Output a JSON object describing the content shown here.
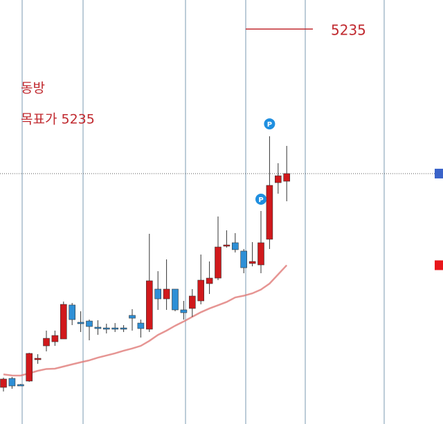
{
  "chart_data": {
    "type": "candlestick",
    "title": "동방",
    "subtitle": "목표가 5235",
    "target": 5235,
    "ylim": [
      1581,
      5504
    ],
    "up_color": "#d0191c",
    "down_color": "#2e8fd6",
    "ma_color": "#e07a78",
    "open": [
      1920,
      2003,
      1946,
      1978,
      2176,
      2304,
      2342,
      2368,
      2682,
      2522,
      2534,
      2477,
      2470,
      2470,
      2470,
      2586,
      2515,
      2458,
      2829,
      2739,
      2829,
      2637,
      2650,
      2720,
      2880,
      2931,
      3226,
      3258,
      3181,
      3066,
      3053,
      3290,
      3814,
      3827
    ],
    "high": [
      2010,
      2016,
      1952,
      2240,
      2227,
      2445,
      2445,
      2714,
      2701,
      2624,
      2547,
      2541,
      2509,
      2515,
      2496,
      2643,
      2547,
      3341,
      2995,
      3104,
      2829,
      2720,
      2829,
      3149,
      3085,
      3501,
      3373,
      3347,
      3200,
      3264,
      3552,
      4243,
      3994,
      4154
    ],
    "low": [
      1882,
      1907,
      1933,
      1971,
      2138,
      2253,
      2304,
      2368,
      2496,
      2432,
      2355,
      2406,
      2419,
      2432,
      2432,
      2445,
      2381,
      2432,
      2637,
      2637,
      2624,
      2547,
      2573,
      2688,
      2784,
      2912,
      3213,
      3168,
      2976,
      3040,
      2976,
      3200,
      3712,
      3642
    ],
    "close": [
      1997,
      1933,
      1933,
      2234,
      2189,
      2374,
      2400,
      2688,
      2547,
      2509,
      2483,
      2464,
      2458,
      2458,
      2458,
      2560,
      2464,
      2906,
      2739,
      2829,
      2637,
      2611,
      2765,
      2912,
      2931,
      3219,
      3238,
      3194,
      3027,
      3085,
      3258,
      3789,
      3878,
      3898
    ],
    "ma": [
      2040,
      2030,
      2029,
      2050,
      2073,
      2090,
      2093,
      2113,
      2133,
      2152,
      2170,
      2195,
      2215,
      2235,
      2259,
      2280,
      2304,
      2350,
      2405,
      2445,
      2490,
      2530,
      2573,
      2615,
      2650,
      2680,
      2710,
      2752,
      2768,
      2790,
      2825,
      2880,
      2965,
      3050
    ],
    "markers": [
      {
        "x": 31,
        "value": 4358,
        "label": "P"
      },
      {
        "x": 30,
        "value": 3661,
        "label": "P"
      }
    ]
  }
}
